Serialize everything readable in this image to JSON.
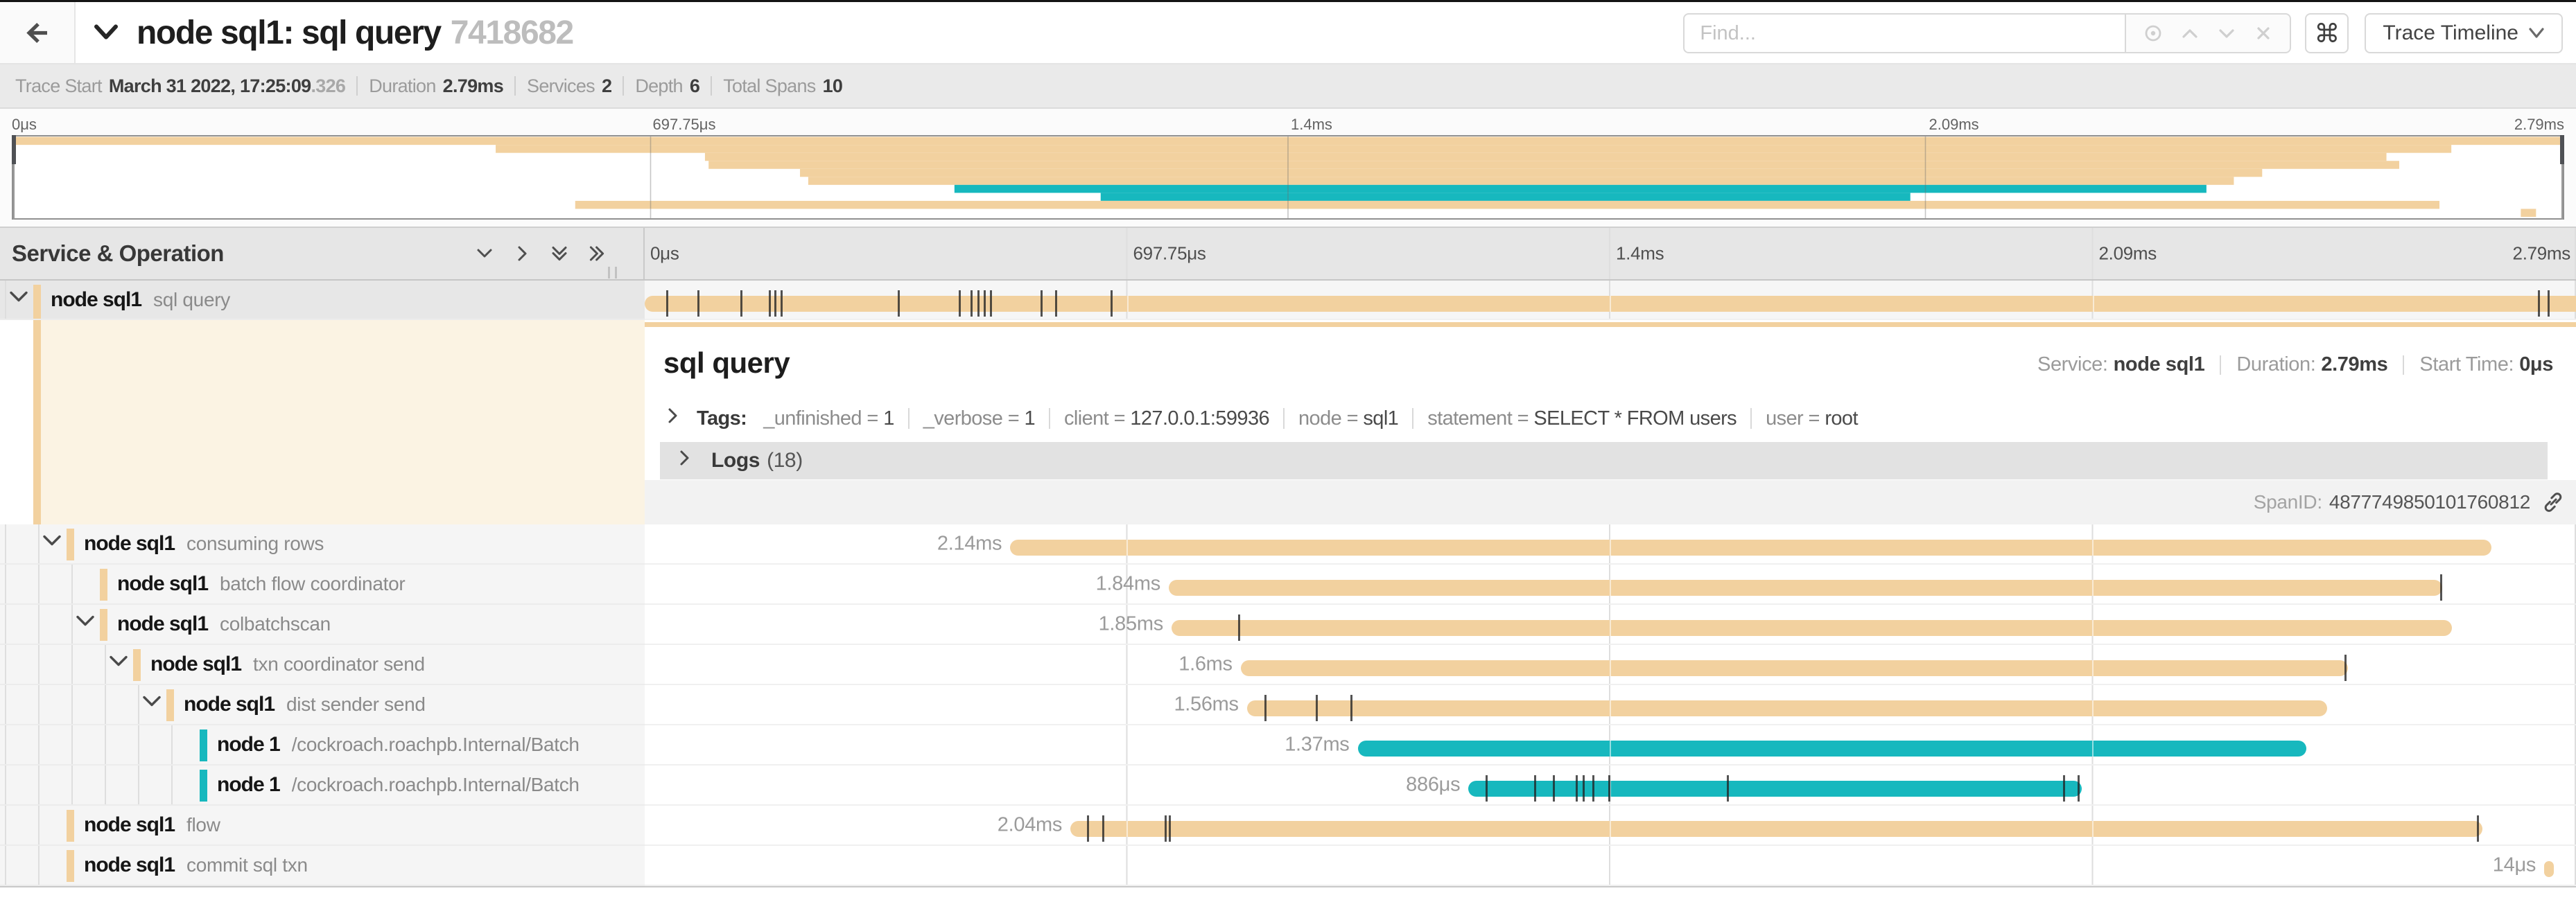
{
  "colors": {
    "tan": "#f2d19f",
    "teal": "#17b8be",
    "tick": "rgba(35,35,35,0.78)"
  },
  "header": {
    "back_icon": "arrow-left",
    "collapse_icon": "chevron-down",
    "title": "node sql1: sql query",
    "trace_id": "7418682",
    "find_placeholder": "Find...",
    "kbd_button": "⌘",
    "view_button": "Trace Timeline"
  },
  "summary": {
    "trace_start_label": "Trace Start",
    "trace_start_value": "March 31 2022, 17:25:09",
    "trace_start_fraction": ".326",
    "items": [
      {
        "label": "Duration",
        "value": "2.79ms"
      },
      {
        "label": "Services",
        "value": "2"
      },
      {
        "label": "Depth",
        "value": "6"
      },
      {
        "label": "Total Spans",
        "value": "10"
      }
    ]
  },
  "ruler": {
    "ticks": [
      "0μs",
      "697.75μs",
      "1.4ms",
      "2.09ms",
      "2.79ms"
    ]
  },
  "left_header": {
    "title": "Service & Operation"
  },
  "trace": {
    "duration_ms": 2.79
  },
  "spans": [
    {
      "service": "node sql1",
      "operation": "sql query",
      "depth": 0,
      "color": "tan",
      "t0": 0,
      "dur": 2.79,
      "dur_label": "",
      "has_chevron": true,
      "selected": true,
      "clip_right": true,
      "ticks": [
        0.032,
        0.077,
        0.139,
        0.18,
        0.188,
        0.197,
        0.367,
        0.455,
        0.472,
        0.482,
        0.491,
        0.5,
        0.573,
        0.594,
        0.674,
        2.736,
        2.75
      ]
    },
    {
      "service": "node sql1",
      "operation": "consuming rows",
      "depth": 1,
      "color": "tan",
      "t0": 0.528,
      "dur": 2.14,
      "dur_label": "2.14ms",
      "has_chevron": true,
      "selected": false,
      "clip_right": false,
      "ticks": []
    },
    {
      "service": "node sql1",
      "operation": "batch flow coordinator",
      "depth": 2,
      "color": "tan",
      "t0": 0.757,
      "dur": 1.84,
      "dur_label": "1.84ms",
      "has_chevron": false,
      "selected": false,
      "clip_right": false,
      "ticks": [
        2.595
      ]
    },
    {
      "service": "node sql1",
      "operation": "colbatchscan",
      "depth": 2,
      "color": "tan",
      "t0": 0.761,
      "dur": 1.85,
      "dur_label": "1.85ms",
      "has_chevron": true,
      "selected": false,
      "clip_right": false,
      "ticks": [
        0.858
      ]
    },
    {
      "service": "node sql1",
      "operation": "txn coordinator send",
      "depth": 3,
      "color": "tan",
      "t0": 0.861,
      "dur": 1.6,
      "dur_label": "1.6ms",
      "has_chevron": true,
      "selected": false,
      "clip_right": false,
      "ticks": [
        2.457
      ]
    },
    {
      "service": "node sql1",
      "operation": "dist sender send",
      "depth": 4,
      "color": "tan",
      "t0": 0.87,
      "dur": 1.56,
      "dur_label": "1.56ms",
      "has_chevron": true,
      "selected": false,
      "clip_right": false,
      "ticks": [
        0.896,
        0.97,
        1.02
      ]
    },
    {
      "service": "node 1",
      "operation": "/cockroach.roachpb.Internal/Batch",
      "depth": 5,
      "color": "teal",
      "t0": 1.03,
      "dur": 1.37,
      "dur_label": "1.37ms",
      "has_chevron": false,
      "selected": false,
      "clip_right": false,
      "ticks": []
    },
    {
      "service": "node 1",
      "operation": "/cockroach.roachpb.Internal/Batch",
      "depth": 5,
      "color": "teal",
      "t0": 1.19,
      "dur": 0.886,
      "dur_label": "886μs",
      "has_chevron": false,
      "selected": false,
      "clip_right": false,
      "ticks": [
        1.216,
        1.286,
        1.313,
        1.346,
        1.356,
        1.37,
        1.393,
        1.564,
        2.05,
        2.071
      ]
    },
    {
      "service": "node sql1",
      "operation": "flow",
      "depth": 1,
      "color": "tan",
      "t0": 0.615,
      "dur": 2.04,
      "dur_label": "2.04ms",
      "has_chevron": false,
      "selected": false,
      "clip_right": false,
      "ticks": [
        0.64,
        0.662,
        0.752,
        0.758,
        2.648
      ]
    },
    {
      "service": "node sql1",
      "operation": "commit sql txn",
      "depth": 1,
      "color": "tan",
      "t0": 2.744,
      "dur": 0.014,
      "dur_label": "14μs",
      "has_chevron": false,
      "selected": false,
      "clip_right": false,
      "ticks": []
    }
  ],
  "detail": {
    "title": "sql query",
    "meta": [
      {
        "label": "Service:",
        "value": "node sql1"
      },
      {
        "label": "Duration:",
        "value": "2.79ms"
      },
      {
        "label": "Start Time:",
        "value": "0μs"
      }
    ],
    "tags_label": "Tags:",
    "tags": [
      {
        "key": "_unfinished",
        "value": "1"
      },
      {
        "key": "_verbose",
        "value": "1"
      },
      {
        "key": "client",
        "value": "127.0.0.1:59936"
      },
      {
        "key": "node",
        "value": "sql1"
      },
      {
        "key": "statement",
        "value": "SELECT * FROM users"
      },
      {
        "key": "user",
        "value": "root"
      }
    ],
    "logs_label": "Logs",
    "logs_count": "(18)",
    "spanid_label": "SpanID:",
    "spanid_value": "4877749850101760812"
  }
}
